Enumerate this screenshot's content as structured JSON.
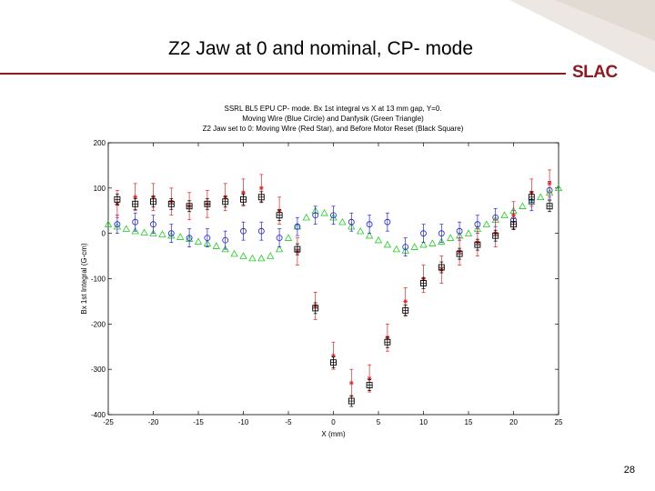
{
  "slide": {
    "title": "Z2 Jaw at 0 and nominal, CP- mode",
    "logo": "SLAC",
    "page_number": "28"
  },
  "colors": {
    "accent": "#8a1c22",
    "blue_circle": "#2222cc",
    "green_triangle": "#22cc22",
    "red_star": "#dd2222",
    "black_square": "#000000"
  },
  "chart_data": {
    "type": "scatter",
    "title_lines": [
      "SSRL BL5 EPU CP- mode. Bx 1st integral vs X at 13 mm gap, Y=0.",
      "Moving Wire (Blue Circle) and Danfysik (Green Triangle)",
      "Z2 Jaw set to 0: Moving Wire (Red Star), and Before Motor Reset (Black Square)"
    ],
    "xlabel": "X (mm)",
    "ylabel": "Bx 1st Integral (G-cm)",
    "xlim": [
      -25,
      25
    ],
    "ylim": [
      -400,
      200
    ],
    "xticks": [
      -25,
      -20,
      -15,
      -10,
      -5,
      0,
      5,
      10,
      15,
      20,
      25
    ],
    "yticks": [
      -400,
      -300,
      -200,
      -100,
      0,
      100,
      200
    ],
    "grid": false,
    "legend": "none",
    "series": [
      {
        "key": "blue_circle",
        "marker": "circle",
        "error": 20,
        "x": [
          -24,
          -22,
          -20,
          -18,
          -16,
          -14,
          -12,
          -10,
          -8,
          -6,
          -4,
          -2,
          0,
          2,
          4,
          6,
          8,
          10,
          12,
          14,
          16,
          18,
          20,
          22,
          24
        ],
        "y": [
          20,
          25,
          20,
          0,
          -10,
          -10,
          -15,
          5,
          5,
          -10,
          15,
          40,
          40,
          25,
          20,
          25,
          -30,
          0,
          0,
          5,
          20,
          35,
          30,
          70,
          95
        ]
      },
      {
        "key": "green_triangle",
        "marker": "triangle",
        "error": 0,
        "x": [
          -25,
          -24,
          -23,
          -22,
          -21,
          -20,
          -19,
          -18,
          -17,
          -16,
          -15,
          -14,
          -13,
          -12,
          -11,
          -10,
          -9,
          -8,
          -7,
          -6,
          -5,
          -4,
          -3,
          -2,
          -1,
          0,
          1,
          2,
          3,
          4,
          5,
          6,
          7,
          8,
          9,
          10,
          11,
          12,
          13,
          14,
          15,
          16,
          17,
          18,
          19,
          20,
          21,
          22,
          23,
          24,
          25
        ],
        "y": [
          20,
          15,
          10,
          5,
          2,
          0,
          -2,
          -5,
          -8,
          -12,
          -18,
          -22,
          -28,
          -35,
          -45,
          -50,
          -55,
          -55,
          -50,
          -35,
          -10,
          15,
          35,
          50,
          45,
          35,
          25,
          15,
          5,
          -5,
          -15,
          -25,
          -35,
          -38,
          -30,
          -25,
          -22,
          -18,
          -10,
          -5,
          0,
          10,
          20,
          30,
          40,
          50,
          60,
          70,
          80,
          90,
          100
        ]
      },
      {
        "key": "red_star",
        "marker": "star",
        "error": 30,
        "x": [
          -24,
          -22,
          -20,
          -18,
          -16,
          -14,
          -12,
          -10,
          -8,
          -6,
          -4,
          -2,
          0,
          2,
          4,
          6,
          8,
          10,
          12,
          14,
          16,
          18,
          20,
          22,
          24
        ],
        "y": [
          65,
          80,
          80,
          70,
          60,
          65,
          80,
          90,
          100,
          50,
          -40,
          -160,
          -270,
          -330,
          -320,
          -230,
          -150,
          -100,
          -80,
          -40,
          -20,
          0,
          40,
          90,
          110
        ]
      },
      {
        "key": "black_square",
        "marker": "square",
        "error": 12,
        "x": [
          -24,
          -22,
          -20,
          -18,
          -16,
          -14,
          -12,
          -10,
          -8,
          -6,
          -4,
          -2,
          0,
          2,
          4,
          6,
          8,
          10,
          12,
          14,
          16,
          18,
          20,
          22,
          24
        ],
        "y": [
          75,
          65,
          70,
          65,
          60,
          65,
          70,
          75,
          80,
          40,
          -35,
          -165,
          -285,
          -370,
          -335,
          -240,
          -170,
          -110,
          -75,
          -45,
          -25,
          -5,
          20,
          80,
          60
        ]
      }
    ]
  }
}
